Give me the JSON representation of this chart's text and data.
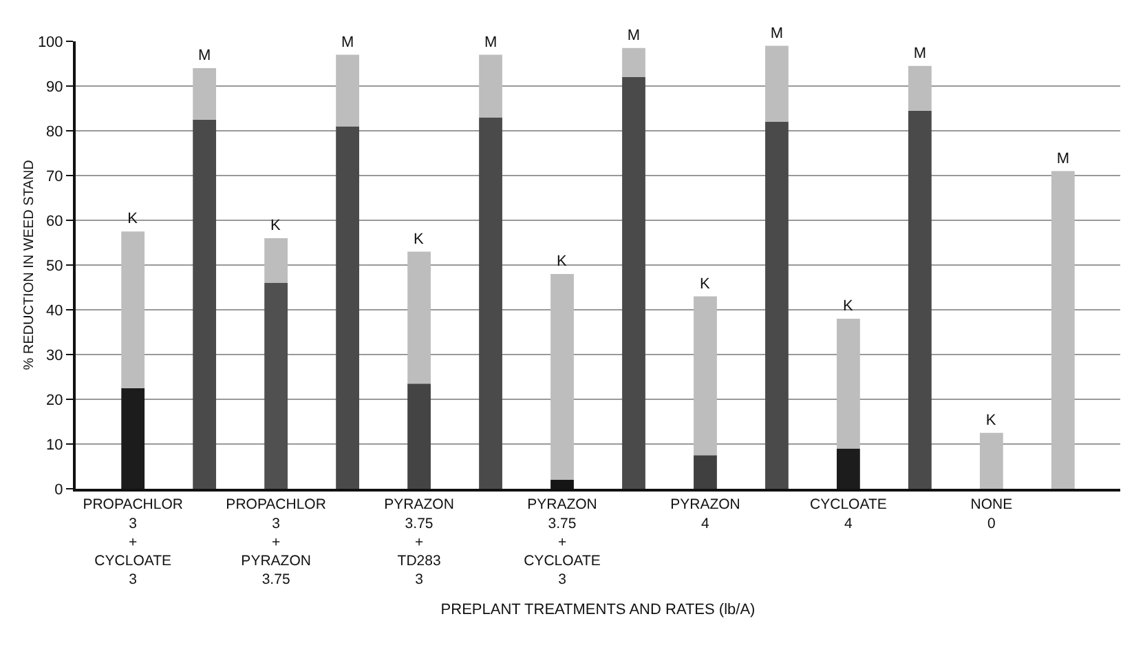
{
  "chart_data": {
    "type": "bar",
    "stacked": true,
    "categories": [
      "PROPACHLOR\n3\n+\nCYCLOATE\n3",
      null,
      "PROPACHLOR\n3\n+\nPYRAZON\n3.75",
      null,
      "PYRAZON\n3.75\n+\nTD283\n3",
      null,
      "PYRAZON\n3.75\n+\nCYCLOATE\n3",
      null,
      "PYRAZON\n4",
      null,
      "CYCLOATE\n4",
      null,
      "NONE\n0",
      null
    ],
    "series": [
      {
        "colors": [
          "#1c1c1c",
          "#4a4a4a",
          "#505050",
          "#4a4a4a",
          "#444444",
          "#4a4a4a",
          "#151515",
          "#4a4a4a",
          "#404040",
          "#4a4a4a",
          "#1c1c1c",
          "#4a4a4a",
          "#404040",
          "#4a4a4a"
        ],
        "values": [
          22.5,
          82.5,
          46,
          81,
          23.5,
          83,
          2,
          92,
          7.5,
          82,
          9,
          84.5,
          0,
          0
        ]
      },
      {
        "color": "#bdbdbd",
        "values": [
          35,
          11.5,
          10,
          16,
          29.5,
          14,
          46,
          6.5,
          35.5,
          17,
          29,
          10,
          12.5,
          71
        ],
        "value_labels": [
          "K",
          "M",
          "K",
          "M",
          "K",
          "M",
          "K",
          "M",
          "K",
          "M",
          "K",
          "M",
          "K",
          "M"
        ]
      }
    ],
    "ylabel": "% REDUCTION IN WEED STAND",
    "xlabel": "PREPLANT TREATMENTS AND RATES (lb/A)",
    "ylim": [
      0,
      100
    ],
    "yticks": [
      0,
      10,
      20,
      30,
      40,
      50,
      60,
      70,
      80,
      90,
      100
    ],
    "grid": "y"
  }
}
